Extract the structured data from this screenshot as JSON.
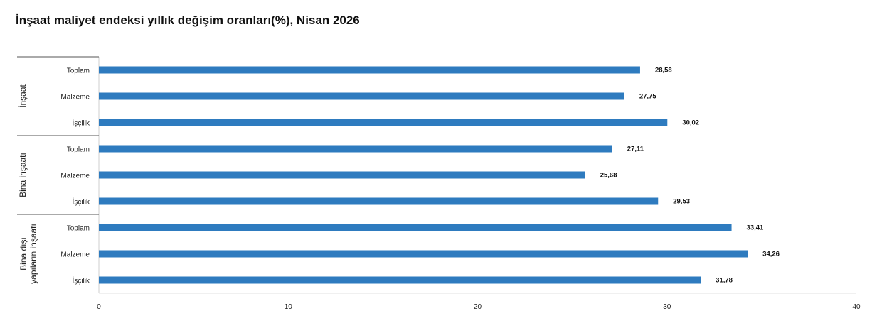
{
  "chart_data": {
    "type": "bar",
    "orientation": "horizontal",
    "title": "İnşaat maliyet endeksi yıllık değişim oranları(%), Nisan 2026",
    "xlabel": "",
    "ylabel": "",
    "xlim": [
      0,
      40
    ],
    "xticks": [
      0,
      10,
      20,
      30,
      40
    ],
    "grid": false,
    "bar_color": "#2e7bbf",
    "groups": [
      {
        "label": "İnşaat",
        "label_lines": [
          "İnşaat"
        ],
        "categories": [
          "Toplam",
          "Malzeme",
          "İşçilik"
        ],
        "values": [
          28.58,
          27.75,
          30.02
        ],
        "value_labels": [
          "28,58",
          "27,75",
          "30,02"
        ]
      },
      {
        "label": "Bina inşaatı",
        "label_lines": [
          "Bina inşaatı"
        ],
        "categories": [
          "Toplam",
          "Malzeme",
          "İşçilik"
        ],
        "values": [
          27.11,
          25.68,
          29.53
        ],
        "value_labels": [
          "27,11",
          "25,68",
          "29,53"
        ]
      },
      {
        "label": "Bina dışı yapıların inşaatı",
        "label_lines": [
          "Bina dışı",
          "yapıların inşaatı"
        ],
        "categories": [
          "Toplam",
          "Malzeme",
          "İşçilik"
        ],
        "values": [
          33.41,
          34.26,
          31.78
        ],
        "value_labels": [
          "33,41",
          "34,26",
          "31,78"
        ]
      }
    ]
  }
}
